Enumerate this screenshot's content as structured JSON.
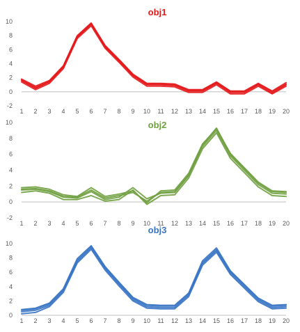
{
  "chart_data": [
    {
      "type": "line",
      "title": "obj1",
      "color": "#e31a1c",
      "x": [
        1,
        2,
        3,
        4,
        5,
        6,
        7,
        8,
        9,
        10,
        11,
        12,
        13,
        14,
        15,
        16,
        17,
        18,
        19,
        20
      ],
      "ylim": [
        -2,
        10
      ],
      "yticks": [
        "-2",
        "0",
        "2",
        "4",
        "6",
        "8",
        "10"
      ],
      "xticks": [
        "1",
        "2",
        "3",
        "4",
        "5",
        "6",
        "7",
        "8",
        "9",
        "10",
        "11",
        "12",
        "13",
        "14",
        "15",
        "16",
        "17",
        "18",
        "19",
        "20"
      ],
      "series": [
        {
          "values": [
            1.6,
            0.5,
            1.4,
            3.5,
            7.8,
            9.6,
            6.4,
            4.4,
            2.3,
            1.0,
            1.0,
            0.9,
            0.1,
            0.1,
            1.2,
            -0.1,
            -0.1,
            1.0,
            -0.2,
            1.0
          ]
        },
        {
          "values": [
            1.8,
            0.8,
            1.6,
            3.7,
            8.0,
            9.8,
            6.6,
            4.6,
            2.5,
            1.2,
            1.2,
            1.1,
            0.3,
            0.3,
            1.4,
            0.1,
            0.1,
            1.2,
            0.1,
            1.3
          ]
        },
        {
          "values": [
            1.4,
            0.3,
            1.2,
            3.3,
            7.6,
            9.4,
            6.2,
            4.2,
            2.1,
            0.8,
            0.8,
            0.7,
            -0.1,
            -0.1,
            1.0,
            -0.3,
            -0.3,
            0.8,
            -0.3,
            0.8
          ]
        },
        {
          "values": [
            1.7,
            0.6,
            1.5,
            3.6,
            7.9,
            9.7,
            6.5,
            4.5,
            2.4,
            1.1,
            1.1,
            1.0,
            0.2,
            0.2,
            1.3,
            0.0,
            0.0,
            1.1,
            0.0,
            1.1
          ]
        }
      ]
    },
    {
      "type": "line",
      "title": "obj2",
      "color": "#70a040",
      "x": [
        1,
        2,
        3,
        4,
        5,
        6,
        7,
        8,
        9,
        10,
        11,
        12,
        13,
        14,
        15,
        16,
        17,
        18,
        19,
        20
      ],
      "ylim": [
        -2,
        10
      ],
      "yticks": [
        "-2",
        "0",
        "2",
        "4",
        "6",
        "8",
        "10"
      ],
      "xticks": [
        "1",
        "2",
        "3",
        "4",
        "5",
        "6",
        "7",
        "8",
        "9",
        "10",
        "11",
        "12",
        "13",
        "14",
        "15",
        "16",
        "17",
        "18",
        "19",
        "20"
      ],
      "series": [
        {
          "values": [
            1.8,
            1.9,
            1.6,
            0.9,
            0.7,
            1.8,
            0.7,
            1.0,
            1.4,
            -0.1,
            1.4,
            1.5,
            3.6,
            7.3,
            9.2,
            6.1,
            4.3,
            2.5,
            1.4,
            1.3
          ]
        },
        {
          "values": [
            1.5,
            1.6,
            1.3,
            0.6,
            0.5,
            1.3,
            0.3,
            0.6,
            1.8,
            0.4,
            1.1,
            1.2,
            3.3,
            7.0,
            9.0,
            5.8,
            4.0,
            2.2,
            1.1,
            1.0
          ]
        },
        {
          "values": [
            1.2,
            1.4,
            1.1,
            0.3,
            0.3,
            0.8,
            0.1,
            0.3,
            1.5,
            -0.3,
            0.8,
            0.9,
            3.0,
            6.7,
            8.7,
            5.5,
            3.7,
            1.9,
            0.8,
            0.7
          ]
        },
        {
          "values": [
            1.6,
            1.7,
            1.4,
            0.7,
            0.6,
            1.5,
            0.5,
            0.8,
            1.2,
            0.1,
            1.2,
            1.3,
            3.4,
            7.2,
            9.3,
            6.0,
            4.2,
            2.4,
            1.3,
            1.2
          ]
        }
      ]
    },
    {
      "type": "line",
      "title": "obj3",
      "color": "#3a75c4",
      "x": [
        1,
        2,
        3,
        4,
        5,
        6,
        7,
        8,
        9,
        10,
        11,
        12,
        13,
        14,
        15,
        16,
        17,
        18,
        19,
        20
      ],
      "ylim": [
        0,
        10
      ],
      "yticks": [
        "0",
        "2",
        "4",
        "6",
        "8",
        "10"
      ],
      "xticks": [
        "1",
        "2",
        "3",
        "4",
        "5",
        "6",
        "7",
        "8",
        "9",
        "10",
        "11",
        "12",
        "13",
        "14",
        "15",
        "16",
        "17",
        "18",
        "19",
        "20"
      ],
      "series": [
        {
          "values": [
            0.7,
            0.9,
            1.6,
            3.6,
            7.7,
            9.6,
            6.7,
            4.5,
            2.4,
            1.4,
            1.3,
            1.3,
            3.0,
            7.4,
            9.2,
            6.1,
            4.2,
            2.3,
            1.3,
            1.4
          ]
        },
        {
          "values": [
            0.5,
            0.7,
            1.4,
            3.4,
            7.5,
            9.4,
            6.5,
            4.3,
            2.2,
            1.2,
            1.1,
            1.1,
            2.8,
            7.2,
            9.0,
            5.9,
            4.0,
            2.1,
            1.1,
            1.2
          ]
        },
        {
          "values": [
            0.2,
            0.4,
            1.2,
            3.2,
            7.3,
            9.2,
            6.3,
            4.1,
            2.0,
            1.0,
            0.9,
            0.9,
            2.6,
            7.0,
            8.8,
            5.7,
            3.8,
            1.9,
            0.9,
            1.0
          ]
        },
        {
          "values": [
            0.8,
            1.0,
            1.7,
            3.7,
            7.9,
            9.7,
            6.8,
            4.6,
            2.5,
            1.5,
            1.4,
            1.4,
            3.1,
            7.6,
            9.4,
            6.2,
            4.3,
            2.4,
            1.4,
            1.5
          ]
        }
      ]
    }
  ]
}
